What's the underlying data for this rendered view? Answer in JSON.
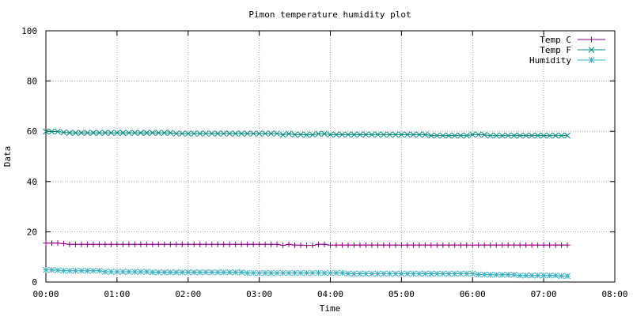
{
  "chart_data": {
    "type": "line",
    "title": "Pimon temperature   humidity plot",
    "xlabel": "Time",
    "ylabel": "Data",
    "ylim": [
      0,
      100
    ],
    "yticks": [
      0,
      20,
      40,
      60,
      80,
      100
    ],
    "xlim_hours": [
      0,
      8
    ],
    "xticks": [
      "00:00",
      "01:00",
      "02:00",
      "03:00",
      "04:00",
      "05:00",
      "06:00",
      "07:00",
      "08:00"
    ],
    "grid": true,
    "legend_position": "top-right",
    "x_start": "00:00",
    "x_step_minutes": 5,
    "series": [
      {
        "name": "Temp C",
        "color": "#8b008b",
        "marker": "plus",
        "values": [
          15.5,
          15.5,
          15.5,
          15.3,
          15.0,
          15.0,
          15.0,
          15.0,
          15.0,
          15.0,
          15.0,
          15.0,
          15.0,
          15.0,
          15.0,
          15.0,
          15.0,
          15.0,
          15.0,
          15.0,
          15.0,
          15.0,
          15.0,
          15.0,
          15.0,
          15.0,
          15.0,
          15.0,
          15.0,
          15.0,
          15.0,
          15.0,
          15.0,
          15.0,
          15.0,
          15.0,
          15.0,
          15.0,
          15.0,
          15.0,
          14.6,
          15.0,
          14.7,
          14.7,
          14.6,
          14.6,
          15.0,
          15.0,
          14.7,
          14.7,
          14.7,
          14.7,
          14.7,
          14.7,
          14.7,
          14.7,
          14.7,
          14.7,
          14.7,
          14.7,
          14.7,
          14.7,
          14.7,
          14.7,
          14.7,
          14.7,
          14.7,
          14.7,
          14.7,
          14.7,
          14.7,
          14.7,
          14.7,
          14.7,
          14.7,
          14.7,
          14.7,
          14.7,
          14.7,
          14.7,
          14.7,
          14.7,
          14.7,
          14.7,
          14.7,
          14.7,
          14.7,
          14.7,
          14.7
        ]
      },
      {
        "name": "Temp F",
        "color": "#008b80",
        "marker": "x",
        "values": [
          59.9,
          59.9,
          59.9,
          59.6,
          59.4,
          59.4,
          59.4,
          59.4,
          59.4,
          59.4,
          59.4,
          59.4,
          59.4,
          59.4,
          59.4,
          59.4,
          59.4,
          59.4,
          59.4,
          59.4,
          59.4,
          59.4,
          59.1,
          59.1,
          59.1,
          59.1,
          59.1,
          59.1,
          59.1,
          59.1,
          59.1,
          59.1,
          59.1,
          59.1,
          59.1,
          59.1,
          59.1,
          59.1,
          59.1,
          59.1,
          58.6,
          59.0,
          58.7,
          58.7,
          58.6,
          58.6,
          59.0,
          59.0,
          58.7,
          58.7,
          58.7,
          58.7,
          58.7,
          58.7,
          58.7,
          58.7,
          58.7,
          58.7,
          58.7,
          58.7,
          58.7,
          58.7,
          58.7,
          58.7,
          58.7,
          58.3,
          58.3,
          58.3,
          58.3,
          58.3,
          58.3,
          58.3,
          58.7,
          58.7,
          58.6,
          58.3,
          58.3,
          58.3,
          58.3,
          58.3,
          58.3,
          58.3,
          58.3,
          58.3,
          58.3,
          58.3,
          58.3,
          58.3,
          58.3
        ]
      },
      {
        "name": "Humidity",
        "color": "#3ab0c0",
        "marker": "star",
        "values": [
          4.8,
          4.8,
          4.7,
          4.5,
          4.5,
          4.5,
          4.5,
          4.5,
          4.5,
          4.5,
          4.1,
          4.1,
          4.1,
          4.1,
          4.1,
          4.1,
          4.1,
          4.1,
          3.9,
          3.9,
          3.9,
          3.9,
          3.9,
          3.9,
          3.9,
          3.9,
          3.9,
          3.9,
          3.9,
          3.9,
          3.9,
          3.9,
          3.9,
          3.9,
          3.6,
          3.6,
          3.6,
          3.6,
          3.6,
          3.6,
          3.6,
          3.6,
          3.6,
          3.6,
          3.6,
          3.6,
          3.6,
          3.6,
          3.6,
          3.6,
          3.6,
          3.3,
          3.3,
          3.3,
          3.3,
          3.3,
          3.3,
          3.3,
          3.3,
          3.3,
          3.3,
          3.3,
          3.3,
          3.3,
          3.3,
          3.3,
          3.3,
          3.3,
          3.3,
          3.3,
          3.3,
          3.3,
          3.3,
          3.0,
          3.0,
          2.9,
          2.9,
          2.9,
          2.9,
          2.9,
          2.6,
          2.6,
          2.6,
          2.6,
          2.6,
          2.6,
          2.6,
          2.4,
          2.4
        ]
      }
    ]
  }
}
